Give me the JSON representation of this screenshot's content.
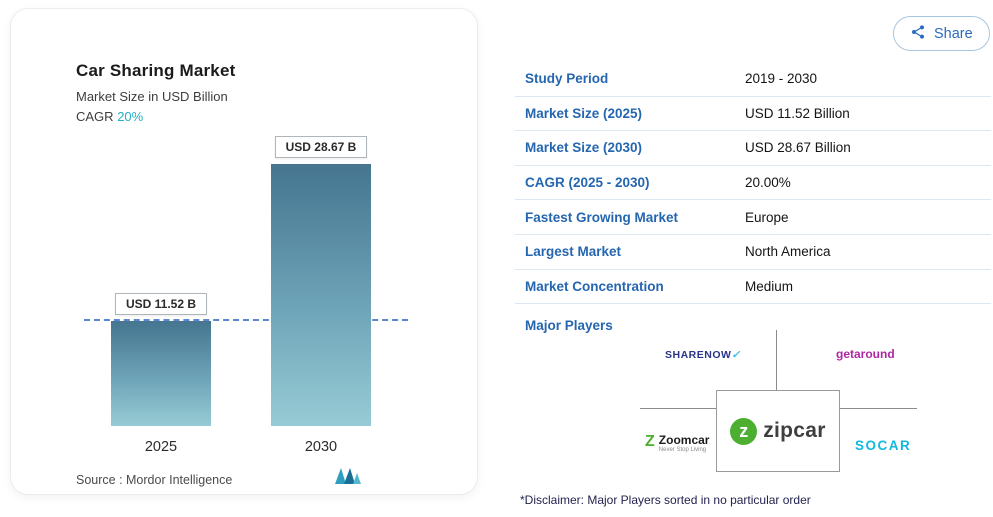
{
  "header": {
    "share_label": "Share"
  },
  "card": {
    "title": "Car Sharing Market",
    "subtitle": "Market Size in USD Billion",
    "cagr_label": "CAGR",
    "cagr_value": "20%",
    "source": "Source :  Mordor Intelligence"
  },
  "chart_data": {
    "type": "bar",
    "categories": [
      "2025",
      "2030"
    ],
    "values": [
      11.52,
      28.67
    ],
    "value_labels": [
      "USD 11.52 B",
      "USD 28.67 B"
    ],
    "title": "Car Sharing Market",
    "ylabel": "Market Size in USD Billion",
    "ylim": [
      0,
      28.67
    ],
    "baseline": 11.52,
    "baseline_style": "dashed",
    "legend": false,
    "grid": false
  },
  "table": {
    "rows": [
      {
        "label": "Study Period",
        "value": "2019 - 2030"
      },
      {
        "label": "Market Size (2025)",
        "value": "USD 11.52 Billion"
      },
      {
        "label": "Market Size (2030)",
        "value": "USD 28.67 Billion"
      },
      {
        "label": "CAGR (2025 - 2030)",
        "value": "20.00%"
      },
      {
        "label": "Fastest Growing Market",
        "value": "Europe"
      },
      {
        "label": "Largest Market",
        "value": "North America"
      },
      {
        "label": "Market Concentration",
        "value": "Medium"
      }
    ]
  },
  "major_players": {
    "label": "Major Players",
    "sharenow": {
      "text": "SHARENOW",
      "mark": "✓"
    },
    "getaround": {
      "text": "getaround"
    },
    "zoomcar": {
      "glyph": "Z",
      "text": "Zoomcar",
      "tagline": "Never Stop Living"
    },
    "zipcar": {
      "glyph": "z",
      "text": "zipcar"
    },
    "socar": {
      "text": "SOCAR"
    },
    "disclaimer": "*Disclaimer: Major Players sorted in no particular order"
  },
  "colors": {
    "label_blue": "#2566b0",
    "cagr_teal": "#25b0c5",
    "bar_gradient_top": "#45758f",
    "bar_gradient_bottom": "#97cbd5",
    "dashed_line_blue": "#5b86d2",
    "zipcar_green": "#4caf32",
    "zoomcar_green": "#4daf2e",
    "getaround_magenta": "#ae27a4",
    "socar_cyan": "#12b9dd",
    "sharenow_navy": "#2b3488",
    "row_divider": "#dde7f1"
  }
}
